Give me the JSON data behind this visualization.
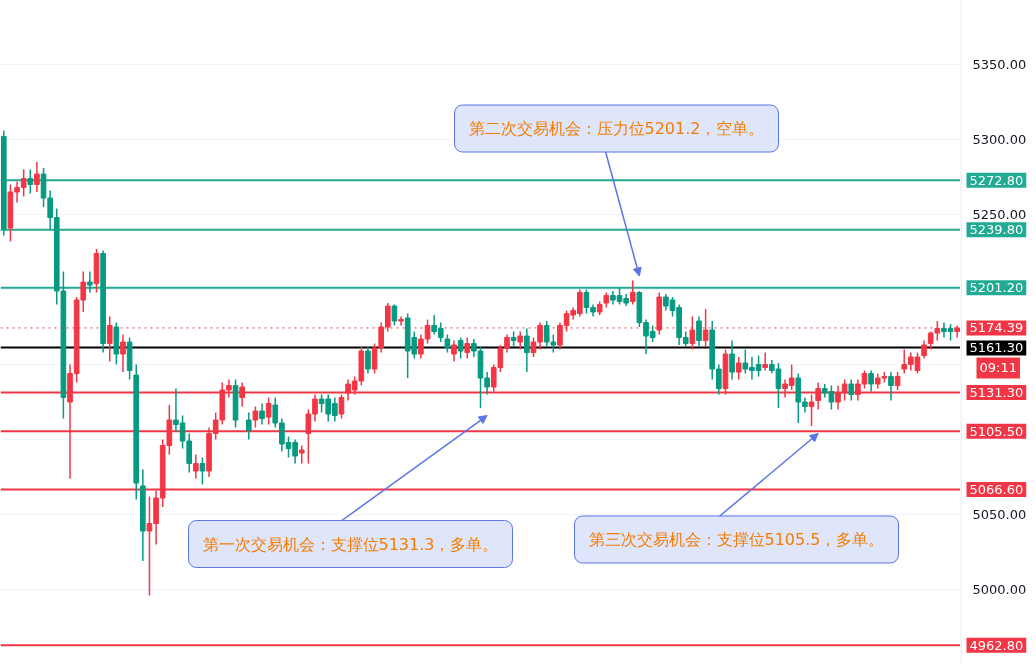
{
  "chart_data": {
    "type": "candlestick",
    "categories": [
      null,
      null,
      null,
      null,
      null,
      null,
      null,
      null,
      null,
      null,
      null,
      null,
      null,
      null,
      null,
      null,
      null,
      null,
      null,
      null,
      null,
      null,
      null,
      null,
      null,
      null,
      null,
      null,
      null,
      null,
      null,
      null,
      null,
      null,
      null,
      null,
      null,
      null,
      null,
      null,
      null,
      null,
      null,
      null,
      null,
      null,
      null,
      null,
      null,
      null,
      null,
      null,
      null,
      null,
      null,
      null,
      null,
      null,
      null,
      null,
      null,
      null,
      null,
      null,
      null,
      null,
      null,
      null,
      null,
      null,
      null,
      null,
      null,
      null,
      null,
      null,
      null,
      null,
      null,
      null,
      null,
      null,
      null,
      null,
      null,
      null,
      null,
      null,
      null,
      null,
      null,
      null,
      null,
      null,
      null,
      null,
      null,
      null,
      null,
      null,
      null,
      null,
      null,
      null,
      null,
      null,
      null,
      null,
      null,
      null,
      null,
      null,
      null,
      null,
      null,
      null,
      null,
      null,
      null,
      null,
      null,
      null,
      null,
      null,
      null,
      null,
      null,
      null,
      null,
      null,
      null,
      null,
      null,
      null,
      null,
      null,
      null,
      null,
      null,
      null,
      null,
      null,
      null,
      null,
      null
    ],
    "ohlc": [
      [
        5302,
        5306,
        5236,
        5240
      ],
      [
        5241,
        5270,
        5232,
        5265
      ],
      [
        5265,
        5272,
        5258,
        5268
      ],
      [
        5268,
        5280,
        5262,
        5274
      ],
      [
        5274,
        5280,
        5264,
        5270
      ],
      [
        5270,
        5285,
        5265,
        5277
      ],
      [
        5277,
        5281,
        5255,
        5261
      ],
      [
        5261,
        5266,
        5240,
        5248
      ],
      [
        5248,
        5254,
        5190,
        5199
      ],
      [
        5199,
        5212,
        5114,
        5128
      ],
      [
        5125,
        5150,
        5074,
        5144
      ],
      [
        5144,
        5195,
        5138,
        5193
      ],
      [
        5193,
        5212,
        5185,
        5205
      ],
      [
        5205,
        5212,
        5198,
        5203
      ],
      [
        5204,
        5227,
        5198,
        5224
      ],
      [
        5224,
        5226,
        5158,
        5164
      ],
      [
        5164,
        5182,
        5152,
        5176
      ],
      [
        5175,
        5178,
        5150,
        5157
      ],
      [
        5157,
        5170,
        5145,
        5165
      ],
      [
        5165,
        5168,
        5140,
        5146
      ],
      [
        5143,
        5150,
        5060,
        5071
      ],
      [
        5069,
        5080,
        5019,
        5039
      ],
      [
        5039,
        5062,
        4996,
        5044
      ],
      [
        5044,
        5066,
        5030,
        5061
      ],
      [
        5061,
        5100,
        5055,
        5096
      ],
      [
        5096,
        5123,
        5090,
        5113
      ],
      [
        5113,
        5134,
        5105,
        5110
      ],
      [
        5111,
        5116,
        5094,
        5099
      ],
      [
        5099,
        5104,
        5078,
        5084
      ],
      [
        5079,
        5090,
        5074,
        5084
      ],
      [
        5084,
        5088,
        5070,
        5079
      ],
      [
        5079,
        5108,
        5075,
        5104
      ],
      [
        5104,
        5118,
        5100,
        5113
      ],
      [
        5113,
        5138,
        5110,
        5133
      ],
      [
        5133,
        5140,
        5128,
        5136
      ],
      [
        5136,
        5140,
        5108,
        5113
      ],
      [
        5128,
        5138,
        5122,
        5135
      ],
      [
        5113,
        5118,
        5100,
        5106
      ],
      [
        5113,
        5122,
        5108,
        5119
      ],
      [
        5119,
        5124,
        5110,
        5114
      ],
      [
        5115,
        5128,
        5110,
        5124
      ],
      [
        5123,
        5128,
        5108,
        5111
      ],
      [
        5111,
        5114,
        5092,
        5097
      ],
      [
        5098,
        5102,
        5088,
        5094
      ],
      [
        5098,
        5100,
        5084,
        5089
      ],
      [
        5091,
        5096,
        5084,
        5093
      ],
      [
        5104,
        5120,
        5084,
        5117
      ],
      [
        5117,
        5130,
        5112,
        5127
      ],
      [
        5127,
        5130,
        5118,
        5124
      ],
      [
        5127,
        5130,
        5112,
        5117
      ],
      [
        5124,
        5128,
        5112,
        5116
      ],
      [
        5117,
        5130,
        5114,
        5128
      ],
      [
        5131,
        5140,
        5126,
        5137
      ],
      [
        5133,
        5142,
        5130,
        5139
      ],
      [
        5139,
        5162,
        5136,
        5159
      ],
      [
        5159,
        5162,
        5144,
        5147
      ],
      [
        5147,
        5164,
        5144,
        5161
      ],
      [
        5161,
        5178,
        5158,
        5175
      ],
      [
        5175,
        5191,
        5172,
        5189
      ],
      [
        5189,
        5190,
        5176,
        5179
      ],
      [
        5179,
        5182,
        5176,
        5180
      ],
      [
        5181,
        5184,
        5141,
        5159
      ],
      [
        5168,
        5172,
        5154,
        5157
      ],
      [
        5157,
        5170,
        5154,
        5167
      ],
      [
        5167,
        5180,
        5164,
        5176
      ],
      [
        5176,
        5183,
        5170,
        5172
      ],
      [
        5174,
        5178,
        5165,
        5168
      ],
      [
        5167,
        5170,
        5158,
        5161
      ],
      [
        5157,
        5166,
        5152,
        5163
      ],
      [
        5166,
        5168,
        5154,
        5159
      ],
      [
        5158,
        5168,
        5154,
        5164
      ],
      [
        5164,
        5167,
        5155,
        5159
      ],
      [
        5159,
        5162,
        5121,
        5141
      ],
      [
        5141,
        5145,
        5130,
        5135
      ],
      [
        5135,
        5150,
        5132,
        5148
      ],
      [
        5148,
        5163,
        5145,
        5161
      ],
      [
        5161,
        5170,
        5158,
        5168
      ],
      [
        5168,
        5172,
        5162,
        5166
      ],
      [
        5165,
        5172,
        5160,
        5169
      ],
      [
        5169,
        5174,
        5145,
        5158
      ],
      [
        5158,
        5168,
        5155,
        5165
      ],
      [
        5165,
        5178,
        5160,
        5176
      ],
      [
        5176,
        5179,
        5162,
        5165
      ],
      [
        5165,
        5170,
        5158,
        5163
      ],
      [
        5163,
        5178,
        5160,
        5176
      ],
      [
        5176,
        5186,
        5172,
        5184
      ],
      [
        5183,
        5188,
        5180,
        5186
      ],
      [
        5184,
        5200,
        5182,
        5198
      ],
      [
        5198,
        5200,
        5184,
        5188
      ],
      [
        5188,
        5190,
        5182,
        5185
      ],
      [
        5185,
        5192,
        5183,
        5190
      ],
      [
        5191,
        5198,
        5188,
        5196
      ],
      [
        5196,
        5199,
        5190,
        5193
      ],
      [
        5196,
        5201,
        5190,
        5192
      ],
      [
        5194,
        5197,
        5189,
        5191
      ],
      [
        5192,
        5206,
        5190,
        5198
      ],
      [
        5198,
        5199,
        5175,
        5178
      ],
      [
        5178,
        5180,
        5157,
        5169
      ],
      [
        5172,
        5176,
        5165,
        5168
      ],
      [
        5173,
        5198,
        5170,
        5195
      ],
      [
        5195,
        5197,
        5186,
        5189
      ],
      [
        5193,
        5195,
        5182,
        5186
      ],
      [
        5188,
        5190,
        5163,
        5168
      ],
      [
        5168,
        5172,
        5162,
        5164
      ],
      [
        5164,
        5182,
        5160,
        5173
      ],
      [
        5179,
        5182,
        5162,
        5166
      ],
      [
        5166,
        5187,
        5162,
        5173
      ],
      [
        5173,
        5179,
        5140,
        5147
      ],
      [
        5147,
        5150,
        5130,
        5134
      ],
      [
        5134,
        5160,
        5130,
        5157
      ],
      [
        5157,
        5166,
        5140,
        5145
      ],
      [
        5145,
        5155,
        5140,
        5151
      ],
      [
        5151,
        5160,
        5144,
        5147
      ],
      [
        5148,
        5155,
        5140,
        5146
      ],
      [
        5150,
        5156,
        5142,
        5146
      ],
      [
        5148,
        5158,
        5146,
        5150
      ],
      [
        5150,
        5153,
        5144,
        5146
      ],
      [
        5147,
        5151,
        5121,
        5134
      ],
      [
        5134,
        5140,
        5128,
        5137
      ],
      [
        5136,
        5150,
        5133,
        5141
      ],
      [
        5141,
        5144,
        5111,
        5125
      ],
      [
        5125,
        5128,
        5118,
        5122
      ],
      [
        5122,
        5130,
        5109,
        5125
      ],
      [
        5126,
        5138,
        5120,
        5134
      ],
      [
        5134,
        5137,
        5128,
        5131
      ],
      [
        5132,
        5136,
        5120,
        5125
      ],
      [
        5125,
        5136,
        5120,
        5131
      ],
      [
        5131,
        5140,
        5126,
        5137
      ],
      [
        5137,
        5140,
        5126,
        5130
      ],
      [
        5130,
        5140,
        5126,
        5137
      ],
      [
        5137,
        5146,
        5134,
        5144
      ],
      [
        5144,
        5146,
        5132,
        5137
      ],
      [
        5137,
        5144,
        5134,
        5141
      ],
      [
        5141,
        5145,
        5138,
        5142
      ],
      [
        5142,
        5145,
        5126,
        5136
      ],
      [
        5136,
        5145,
        5133,
        5142
      ],
      [
        5147,
        5160,
        5144,
        5150
      ],
      [
        5150,
        5158,
        5146,
        5155
      ],
      [
        5146,
        5158,
        5144,
        5155
      ],
      [
        5156,
        5166,
        5154,
        5163
      ],
      [
        5164,
        5172,
        5160,
        5171
      ],
      [
        5171,
        5179,
        5166,
        5174
      ],
      [
        5174,
        5178,
        5168,
        5172
      ],
      [
        5174,
        5177,
        5166,
        5172
      ],
      [
        5172,
        5176,
        5168,
        5174.39
      ]
    ],
    "colors": [
      "#089981",
      "#f23645",
      "#f23645",
      "#f23645",
      "#089981",
      "#f23645",
      "#089981",
      "#089981",
      "#089981",
      "#089981",
      "#f23645",
      "#f23645",
      "#f23645",
      "#089981",
      "#f23645",
      "#089981",
      "#f23645",
      "#089981",
      "#f23645",
      "#089981",
      "#089981",
      "#089981",
      "#f23645",
      "#f23645",
      "#f23645",
      "#f23645",
      "#089981",
      "#089981",
      "#089981",
      "#f23645",
      "#089981",
      "#f23645",
      "#f23645",
      "#f23645",
      "#f23645",
      "#089981",
      "#f23645",
      "#089981",
      "#f23645",
      "#089981",
      "#f23645",
      "#089981",
      "#089981",
      "#089981",
      "#089981",
      "#f23645",
      "#f23645",
      "#f23645",
      "#089981",
      "#089981",
      "#089981",
      "#f23645",
      "#f23645",
      "#f23645",
      "#f23645",
      "#089981",
      "#f23645",
      "#f23645",
      "#f23645",
      "#089981",
      "#f23645",
      "#089981",
      "#089981",
      "#f23645",
      "#f23645",
      "#089981",
      "#089981",
      "#089981",
      "#f23645",
      "#089981",
      "#f23645",
      "#089981",
      "#089981",
      "#089981",
      "#f23645",
      "#f23645",
      "#f23645",
      "#089981",
      "#f23645",
      "#089981",
      "#f23645",
      "#f23645",
      "#089981",
      "#089981",
      "#f23645",
      "#f23645",
      "#f23645",
      "#f23645",
      "#089981",
      "#089981",
      "#f23645",
      "#f23645",
      "#089981",
      "#089981",
      "#089981",
      "#f23645",
      "#089981",
      "#089981",
      "#089981",
      "#f23645",
      "#089981",
      "#089981",
      "#089981",
      "#089981",
      "#f23645",
      "#089981",
      "#f23645",
      "#089981",
      "#089981",
      "#f23645",
      "#089981",
      "#f23645",
      "#089981",
      "#089981",
      "#089981",
      "#f23645",
      "#089981",
      "#089981",
      "#f23645",
      "#f23645",
      "#089981",
      "#089981",
      "#f23645",
      "#f23645",
      "#089981",
      "#089981",
      "#f23645",
      "#f23645",
      "#089981",
      "#f23645",
      "#f23645",
      "#089981",
      "#f23645",
      "#f23645",
      "#089981",
      "#f23645",
      "#f23645",
      "#f23645",
      "#f23645",
      "#f23645",
      "#f23645",
      "#f23645",
      "#089981",
      "#089981",
      "#f23645"
    ],
    "ylim": [
      4950,
      5392.7
    ],
    "yticks": [
      {
        "value": 5000,
        "label": "5000.00"
      },
      {
        "value": 5050,
        "label": "5050.00"
      },
      {
        "value": 5100,
        "label": null
      },
      {
        "value": 5150,
        "label": null
      },
      {
        "value": 5200,
        "label": null
      },
      {
        "value": 5250,
        "label": "5250.00"
      },
      {
        "value": 5300,
        "label": "5300.00"
      },
      {
        "value": 5350,
        "label": "5350.00"
      }
    ],
    "grid": "y",
    "ref_lines": [
      {
        "axis": "y",
        "value": 5272.8,
        "label": "5272.80",
        "color": "#22ab94"
      },
      {
        "axis": "y",
        "value": 5239.8,
        "label": "5239.80",
        "color": "#22ab94"
      },
      {
        "axis": "y",
        "value": 5201.2,
        "label": "5201.20",
        "color": "#22ab94"
      },
      {
        "axis": "y",
        "value": 5174.39,
        "label": "5174.39",
        "color": "#f23645",
        "line_style": "dotted"
      },
      {
        "axis": "y",
        "value": 5161.3,
        "label": "5161.30",
        "color": "#000000"
      },
      {
        "axis": "y",
        "value": 5131.3,
        "label": "5131.30",
        "color": "#f23645"
      },
      {
        "axis": "y",
        "value": 5105.5,
        "label": "5105.50",
        "color": "#f23645"
      },
      {
        "axis": "y",
        "value": 5066.6,
        "label": "5066.60",
        "color": "#f23645"
      },
      {
        "axis": "y",
        "value": 4962.8,
        "label": "4962.80",
        "color": "#f23645"
      }
    ],
    "annotations": [
      "第二次交易机会：压力位5201.2，空单。",
      "第一次交易机会：支撑位5131.3，多单。",
      "第三次交易机会：支撑位5105.5，多单。",
      "09:11"
    ]
  }
}
